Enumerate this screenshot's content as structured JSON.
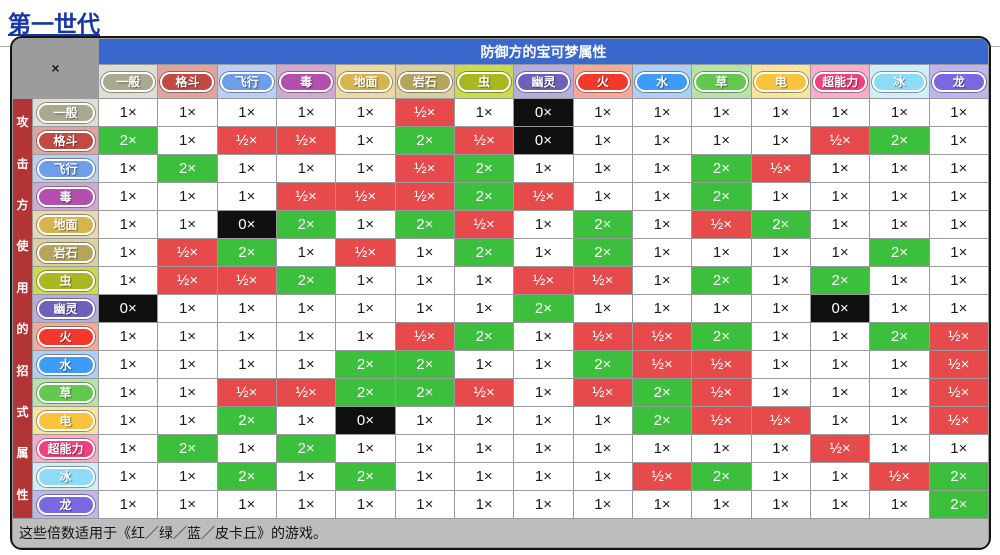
{
  "page": {
    "title": "第一世代"
  },
  "chart_data": {
    "type": "heatmap",
    "title": "第一世代",
    "defense_axis_label": "防御方的宝可梦属性",
    "attack_axis_label": "攻击方使用的招式属性",
    "corner_label": "×",
    "types": [
      "一般",
      "格斗",
      "飞行",
      "毒",
      "地面",
      "岩石",
      "虫",
      "幽灵",
      "火",
      "水",
      "草",
      "电",
      "超能力",
      "冰",
      "龙"
    ],
    "multiplier_labels": {
      "1": "1×",
      "2": "2×",
      "0.5": "½×",
      "0": "0×"
    },
    "matrix": [
      [
        1,
        1,
        1,
        1,
        1,
        0.5,
        1,
        0,
        1,
        1,
        1,
        1,
        1,
        1,
        1
      ],
      [
        2,
        1,
        0.5,
        0.5,
        1,
        2,
        0.5,
        0,
        1,
        1,
        1,
        1,
        0.5,
        2,
        1
      ],
      [
        1,
        2,
        1,
        1,
        1,
        0.5,
        2,
        1,
        1,
        1,
        2,
        0.5,
        1,
        1,
        1
      ],
      [
        1,
        1,
        1,
        0.5,
        0.5,
        0.5,
        2,
        0.5,
        1,
        1,
        2,
        1,
        1,
        1,
        1
      ],
      [
        1,
        1,
        0,
        2,
        1,
        2,
        0.5,
        1,
        2,
        1,
        0.5,
        2,
        1,
        1,
        1
      ],
      [
        1,
        0.5,
        2,
        1,
        0.5,
        1,
        2,
        1,
        2,
        1,
        1,
        1,
        1,
        2,
        1
      ],
      [
        1,
        0.5,
        0.5,
        2,
        1,
        1,
        1,
        0.5,
        0.5,
        1,
        2,
        1,
        2,
        1,
        1
      ],
      [
        0,
        1,
        1,
        1,
        1,
        1,
        1,
        2,
        1,
        1,
        1,
        1,
        0,
        1,
        1
      ],
      [
        1,
        1,
        1,
        1,
        1,
        0.5,
        2,
        1,
        0.5,
        0.5,
        2,
        1,
        1,
        2,
        0.5
      ],
      [
        1,
        1,
        1,
        1,
        2,
        2,
        1,
        1,
        2,
        0.5,
        0.5,
        1,
        1,
        1,
        0.5
      ],
      [
        1,
        1,
        0.5,
        0.5,
        2,
        2,
        0.5,
        1,
        0.5,
        2,
        0.5,
        1,
        1,
        1,
        0.5
      ],
      [
        1,
        1,
        2,
        1,
        0,
        1,
        1,
        1,
        1,
        2,
        0.5,
        0.5,
        1,
        1,
        0.5
      ],
      [
        1,
        2,
        1,
        2,
        1,
        1,
        1,
        1,
        1,
        1,
        1,
        1,
        0.5,
        1,
        1
      ],
      [
        1,
        1,
        2,
        1,
        2,
        1,
        1,
        1,
        1,
        0.5,
        2,
        1,
        1,
        0.5,
        2
      ],
      [
        1,
        1,
        1,
        1,
        1,
        1,
        1,
        1,
        1,
        1,
        1,
        1,
        1,
        1,
        2
      ]
    ],
    "note": "这些倍数适用于《红／绿／蓝／皮卡丘》的游戏。"
  },
  "styles": {
    "link_color": "#1535A8",
    "header_bg": "#3B68CE",
    "strip_bg": "#B23434",
    "corner_bg": "#9C9C9C",
    "footer_bg": "#BDBDBD",
    "type_colors": [
      {
        "badge": "#ABA890",
        "tint": "#DEDED2"
      },
      {
        "badge": "#C24A42",
        "tint": "#E0A39E"
      },
      {
        "badge": "#6D9EEA",
        "tint": "#BACFF5"
      },
      {
        "badge": "#B44FB0",
        "tint": "#D3A6D3"
      },
      {
        "badge": "#D8B54C",
        "tint": "#EAD9A6"
      },
      {
        "badge": "#B7A35C",
        "tint": "#DCCFA0"
      },
      {
        "badge": "#A9B821",
        "tint": "#CBDB4F"
      },
      {
        "badge": "#6F60BB",
        "tint": "#B5ADDF"
      },
      {
        "badge": "#F4392C",
        "tint": "#F7A896"
      },
      {
        "badge": "#3E9BF7",
        "tint": "#ABCFF7"
      },
      {
        "badge": "#62C84F",
        "tint": "#B5E4A4"
      },
      {
        "badge": "#FAC33C",
        "tint": "#FAE49A"
      },
      {
        "badge": "#F23F80",
        "tint": "#F8ADC8"
      },
      {
        "badge": "#8CDCF8",
        "tint": "#CEEEFB"
      },
      {
        "badge": "#7A68E0",
        "tint": "#C0B3F0"
      }
    ],
    "multiplier_colors": {
      "1": {
        "bg": "#FFFFFF",
        "fg": "#1A1A1A"
      },
      "2": {
        "bg": "#3CBF3C",
        "fg": "#FFFFFF"
      },
      "0.5": {
        "bg": "#E64A4A",
        "fg": "#FFFFFF"
      },
      "0": {
        "bg": "#101010",
        "fg": "#FFFFFF"
      }
    }
  }
}
